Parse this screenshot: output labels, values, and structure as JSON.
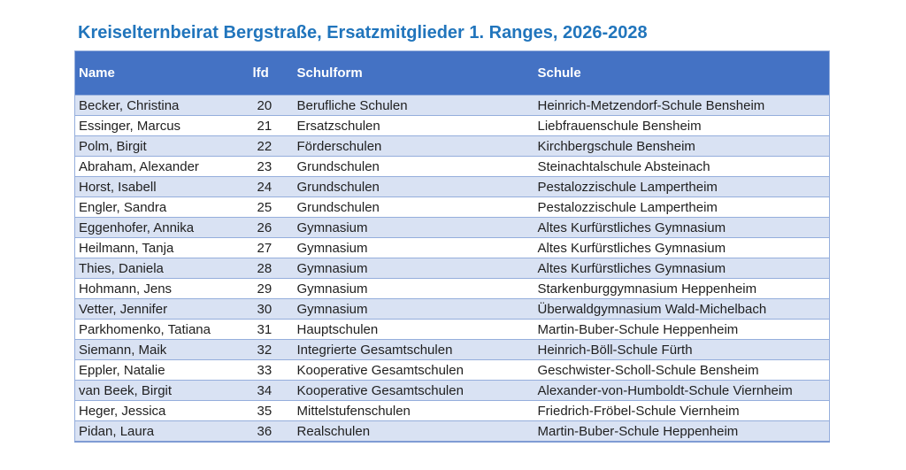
{
  "title": "Kreiselternbeirat Bergstraße, Ersatzmitglieder 1. Ranges, 2026-2028",
  "table": {
    "columns": [
      "Name",
      "lfd",
      "Schulform",
      "Schule"
    ],
    "rows": [
      [
        "Becker, Christina",
        "20",
        "Berufliche Schulen",
        "Heinrich-Metzendorf-Schule Bensheim"
      ],
      [
        "Essinger, Marcus",
        "21",
        "Ersatzschulen",
        "Liebfrauenschule Bensheim"
      ],
      [
        "Polm, Birgit",
        "22",
        "Förderschulen",
        "Kirchbergschule Bensheim"
      ],
      [
        "Abraham, Alexander",
        "23",
        "Grundschulen",
        "Steinachtalschule Absteinach"
      ],
      [
        "Horst, Isabell",
        "24",
        "Grundschulen",
        "Pestalozzischule Lampertheim"
      ],
      [
        "Engler, Sandra",
        "25",
        "Grundschulen",
        "Pestalozzischule Lampertheim"
      ],
      [
        "Eggenhofer, Annika",
        "26",
        "Gymnasium",
        "Altes Kurfürstliches Gymnasium"
      ],
      [
        "Heilmann, Tanja",
        "27",
        "Gymnasium",
        "Altes Kurfürstliches Gymnasium"
      ],
      [
        "Thies, Daniela",
        "28",
        "Gymnasium",
        "Altes Kurfürstliches Gymnasium"
      ],
      [
        "Hohmann, Jens",
        "29",
        "Gymnasium",
        "Starkenburggymnasium Heppenheim"
      ],
      [
        "Vetter, Jennifer",
        "30",
        "Gymnasium",
        "Überwaldgymnasium Wald-Michelbach"
      ],
      [
        "Parkhomenko, Tatiana",
        "31",
        "Hauptschulen",
        "Martin-Buber-Schule Heppenheim"
      ],
      [
        "Siemann, Maik",
        "32",
        "Integrierte Gesamtschulen",
        "Heinrich-Böll-Schule Fürth"
      ],
      [
        "Eppler, Natalie",
        "33",
        "Kooperative Gesamtschulen",
        "Geschwister-Scholl-Schule Bensheim"
      ],
      [
        "van Beek, Birgit",
        "34",
        "Kooperative Gesamtschulen",
        "Alexander-von-Humboldt-Schule Viernheim"
      ],
      [
        "Heger, Jessica",
        "35",
        "Mittelstufenschulen",
        "Friedrich-Fröbel-Schule Viernheim"
      ],
      [
        "Pidan, Laura",
        "36",
        "Realschulen",
        "Martin-Buber-Schule Heppenheim"
      ]
    ]
  },
  "colors": {
    "title_text": "#2175BC",
    "header_bg": "#4472C4",
    "header_text": "#FFFFFF",
    "row_bg": "#FFFFFF",
    "row_alt_bg": "#D9E2F3",
    "border": "#95AEDC",
    "border_strong": "#7F9CD4",
    "body_text": "#1F1F1F"
  }
}
